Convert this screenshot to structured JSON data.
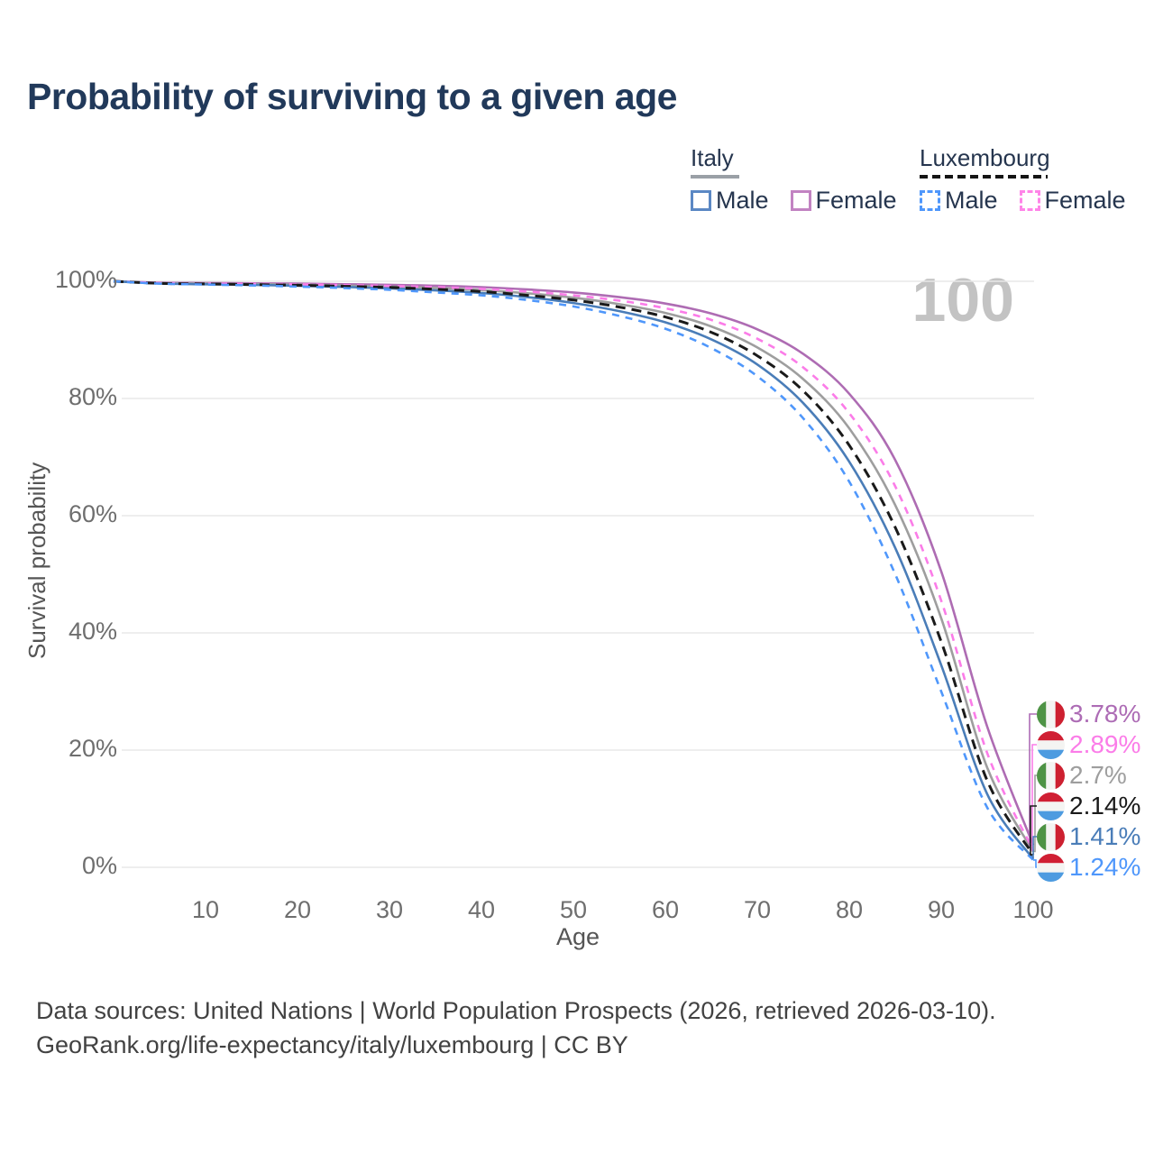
{
  "title": "Probability of surviving to a given age",
  "legend": {
    "groups": [
      {
        "label": "Italy",
        "line_style": "solid",
        "underline_color": "#9aa0a6",
        "items": [
          {
            "label": "Male",
            "color": "#5b88c4"
          },
          {
            "label": "Female",
            "color": "#c283c2"
          }
        ]
      },
      {
        "label": "Luxembourg",
        "line_style": "dashed",
        "underline_color": "#141414",
        "items": [
          {
            "label": "Male",
            "color": "#4f97fb"
          },
          {
            "label": "Female",
            "color": "#ff85e8"
          }
        ]
      }
    ]
  },
  "watermark_age": "100",
  "footer": {
    "line1": "Data sources: United Nations | World Population Prospects (2026, retrieved 2026-03-10).",
    "line2": "GeoRank.org/life-expectancy/italy/luxembourg | CC BY"
  },
  "chart_data": {
    "type": "line",
    "title": "Probability of surviving to a given age",
    "xlabel": "Age",
    "ylabel": "Survival probability",
    "xlim": [
      0,
      100
    ],
    "ylim": [
      0,
      100
    ],
    "grid": "horizontal",
    "gridline_color": "#e8e8e8",
    "x_ticks": [
      10,
      20,
      30,
      40,
      50,
      60,
      70,
      80,
      90,
      100
    ],
    "y_ticks": [
      {
        "v": 100,
        "label": "100%"
      },
      {
        "v": 80,
        "label": "80%"
      },
      {
        "v": 60,
        "label": "60%"
      },
      {
        "v": 40,
        "label": "40%"
      },
      {
        "v": 20,
        "label": "20%"
      },
      {
        "v": 0,
        "label": "0%"
      }
    ],
    "x": [
      0,
      5,
      10,
      15,
      20,
      25,
      30,
      35,
      40,
      45,
      50,
      55,
      60,
      65,
      70,
      75,
      80,
      85,
      90,
      95,
      100
    ],
    "series": [
      {
        "name": "Italy Female",
        "country": "italy",
        "sex": "female",
        "style": "solid",
        "color": "#ae6cb3",
        "values": [
          100,
          99.75,
          99.7,
          99.65,
          99.6,
          99.5,
          99.4,
          99.25,
          99.0,
          98.6,
          98.1,
          97.3,
          96.2,
          94.5,
          91.8,
          87.6,
          80.8,
          69.5,
          50.5,
          24.0,
          3.78
        ],
        "end_label": {
          "text": "3.78%",
          "color": "#ad6cb5",
          "flag": "italy"
        }
      },
      {
        "name": "Luxembourg Female",
        "country": "luxembourg",
        "sex": "female",
        "style": "dashed",
        "color": "#fb7ce8",
        "values": [
          100,
          99.7,
          99.62,
          99.55,
          99.48,
          99.35,
          99.2,
          99.0,
          98.7,
          98.25,
          97.6,
          96.7,
          95.4,
          93.4,
          90.2,
          85.3,
          77.5,
          65.0,
          45.5,
          19.5,
          2.89
        ],
        "end_label": {
          "text": "2.89%",
          "color": "#fb7ce8",
          "flag": "luxembourg"
        }
      },
      {
        "name": "Italy Both sexes",
        "country": "italy",
        "sex": "both",
        "style": "solid",
        "color": "#9e9e9e",
        "values": [
          100,
          99.68,
          99.6,
          99.52,
          99.42,
          99.28,
          99.1,
          98.85,
          98.5,
          97.95,
          97.2,
          96.1,
          94.6,
          92.3,
          88.7,
          83.3,
          74.9,
          61.8,
          42.5,
          17.0,
          2.7
        ],
        "end_label": {
          "text": "2.7%",
          "color": "#9e9e9e",
          "flag": "italy"
        }
      },
      {
        "name": "Luxembourg Both sexes",
        "country": "luxembourg",
        "sex": "both",
        "style": "dashed",
        "color": "#1a1a1a",
        "values": [
          100,
          99.65,
          99.55,
          99.45,
          99.33,
          99.15,
          98.95,
          98.65,
          98.25,
          97.6,
          96.8,
          95.6,
          93.9,
          91.3,
          87.3,
          81.3,
          72.0,
          58.0,
          38.5,
          14.8,
          2.14
        ],
        "end_label": {
          "text": "2.14%",
          "color": "#1a1a1a",
          "flag": "luxembourg"
        }
      },
      {
        "name": "Italy Male",
        "country": "italy",
        "sex": "male",
        "style": "solid",
        "color": "#4a7db8",
        "values": [
          100,
          99.62,
          99.5,
          99.4,
          99.25,
          99.05,
          98.8,
          98.45,
          98.0,
          97.3,
          96.3,
          94.9,
          93.0,
          90.1,
          85.8,
          79.2,
          69.2,
          54.5,
          34.5,
          12.5,
          1.41
        ],
        "end_label": {
          "text": "1.41%",
          "color": "#4a7db8",
          "flag": "italy"
        }
      },
      {
        "name": "Luxembourg Male",
        "country": "luxembourg",
        "sex": "male",
        "style": "dashed",
        "color": "#4f97fb",
        "values": [
          100,
          99.6,
          99.45,
          99.3,
          99.1,
          98.85,
          98.55,
          98.1,
          97.6,
          96.8,
          95.7,
          94.1,
          91.9,
          88.6,
          83.8,
          76.6,
          65.8,
          50.0,
          30.0,
          10.2,
          1.24
        ],
        "end_label": {
          "text": "1.24%",
          "color": "#4f97fb",
          "flag": "luxembourg"
        }
      }
    ],
    "flag_colors": {
      "italy": [
        "#4e9345",
        "#f4f4f2",
        "#cd2030"
      ],
      "luxembourg": [
        "#d01f33",
        "#f4f4f2",
        "#4d9be0"
      ]
    }
  }
}
